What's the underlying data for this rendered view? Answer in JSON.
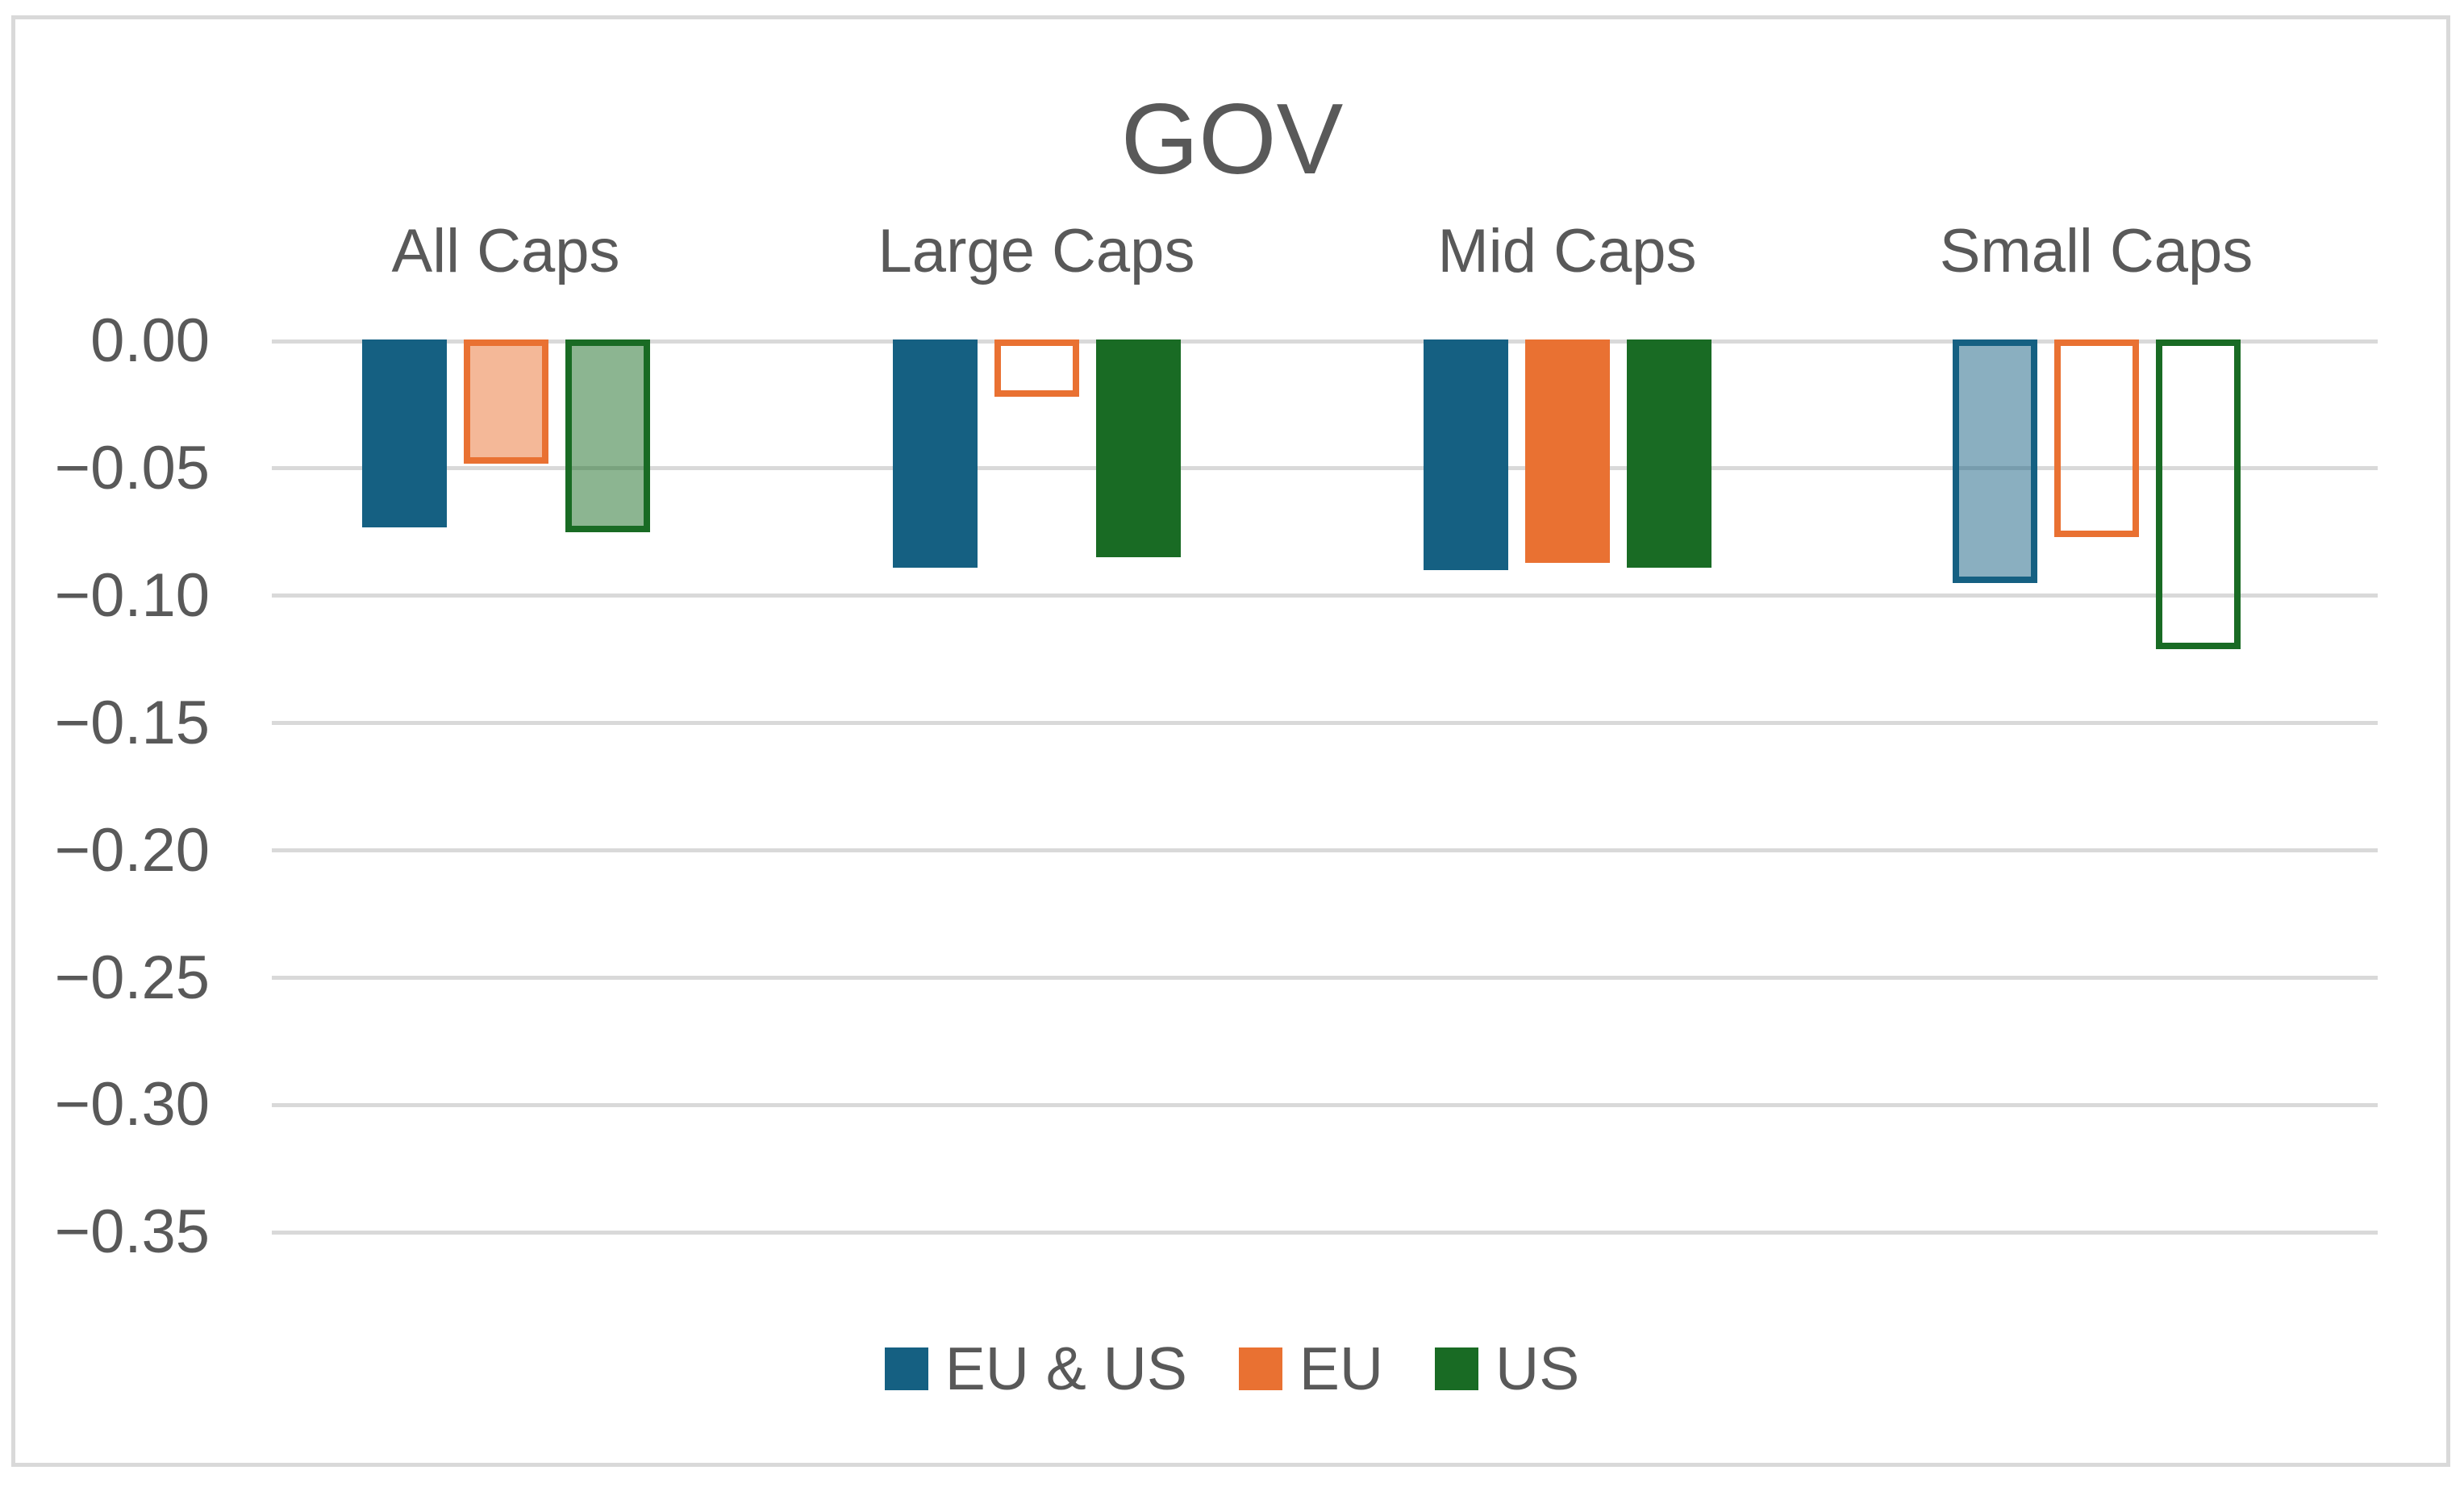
{
  "chart_data": {
    "type": "bar",
    "title": "GOV",
    "categories": [
      "All Caps",
      "Large Caps",
      "Mid Caps",
      "Small Caps"
    ],
    "series": [
      {
        "name": "EU & US",
        "color": "#156082",
        "values": [
          -0.073,
          -0.089,
          -0.09,
          -0.095
        ],
        "bar_styles": [
          "solid",
          "solid",
          "solid",
          "tint"
        ]
      },
      {
        "name": "EU",
        "color": "#E97132",
        "values": [
          -0.048,
          -0.022,
          -0.087,
          -0.077
        ],
        "bar_styles": [
          "tint",
          "hollow",
          "solid",
          "hollow"
        ]
      },
      {
        "name": "US",
        "color": "#196B24",
        "values": [
          -0.075,
          -0.085,
          -0.089,
          -0.121
        ],
        "bar_styles": [
          "tint",
          "solid",
          "solid",
          "hollow"
        ]
      }
    ],
    "yticks": [
      0.0,
      -0.05,
      -0.1,
      -0.15,
      -0.2,
      -0.25,
      -0.3,
      -0.35
    ],
    "ytick_labels": [
      "0.00",
      "−0.05",
      "−0.10",
      "−0.15",
      "−0.20",
      "−0.25",
      "−0.30",
      "−0.35"
    ],
    "ylim": [
      -0.38,
      0
    ],
    "xlabel": "",
    "ylabel": "",
    "grid": true,
    "legend_position": "bottom",
    "tint_alpha": 0.5
  },
  "colors": {
    "text": "#595959",
    "gridline": "#D9D9D9",
    "chart_border": "#D9D9D9",
    "background": "#FFFFFF"
  }
}
